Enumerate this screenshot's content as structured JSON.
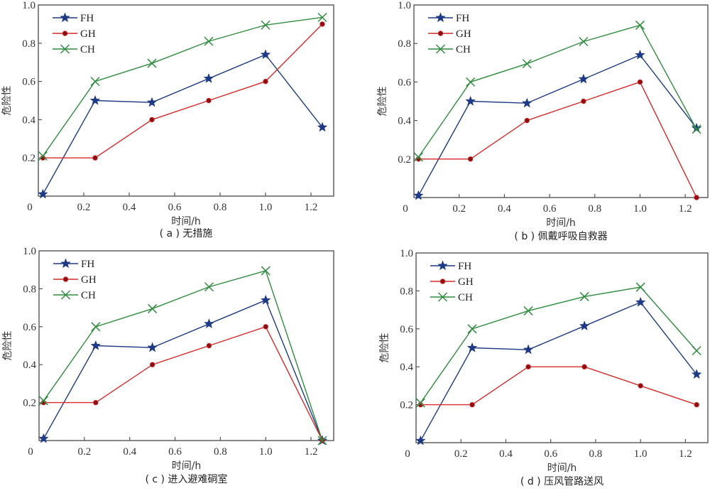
{
  "colors": {
    "FH": "#1f3a85",
    "GH": "#d42a2a",
    "GH_marker": "#8b0f12",
    "CH": "#2f8c3f",
    "axis": "#555555"
  },
  "chart_data": [
    {
      "type": "line",
      "panel": "a",
      "caption": "( a ) 无措施",
      "xlabel": "时间/h",
      "ylabel": "危险性",
      "xlim": [
        0,
        1.3
      ],
      "ylim": [
        0,
        1.0
      ],
      "xticks": [
        "0",
        "0.2",
        "0.4",
        "0.6",
        "0.8",
        "1.0",
        "1.2"
      ],
      "yticks": [
        "0.2",
        "0.4",
        "0.6",
        "0.8",
        "1.0"
      ],
      "grid": false,
      "legend_position": "top-left",
      "x": [
        0.02,
        0.25,
        0.5,
        0.75,
        1.0,
        1.25
      ],
      "series": [
        {
          "name": "FH",
          "marker": "star",
          "values": [
            0.01,
            0.5,
            0.49,
            0.615,
            0.74,
            0.36
          ]
        },
        {
          "name": "GH",
          "marker": "dot",
          "values": [
            0.2,
            0.2,
            0.4,
            0.5,
            0.6,
            0.9
          ]
        },
        {
          "name": "CH",
          "marker": "x",
          "values": [
            0.21,
            0.6,
            0.695,
            0.81,
            0.895,
            0.935
          ]
        }
      ]
    },
    {
      "type": "line",
      "panel": "b",
      "caption": "( b ) 佩戴呼吸自救器",
      "xlabel": "时间/h",
      "ylabel": "危险性",
      "xlim": [
        0,
        1.3
      ],
      "ylim": [
        0,
        1.0
      ],
      "xticks": [
        "0",
        "0.2",
        "0.4",
        "0.6",
        "0.8",
        "1.0",
        "1.2"
      ],
      "yticks": [
        "0.2",
        "0.4",
        "0.6",
        "0.8",
        "1.0"
      ],
      "grid": false,
      "legend_position": "top-left",
      "x": [
        0.02,
        0.25,
        0.5,
        0.75,
        1.0,
        1.25
      ],
      "series": [
        {
          "name": "FH",
          "marker": "star",
          "values": [
            0.01,
            0.5,
            0.49,
            0.615,
            0.74,
            0.36
          ]
        },
        {
          "name": "GH",
          "marker": "dot",
          "values": [
            0.2,
            0.2,
            0.4,
            0.5,
            0.6,
            0.0
          ]
        },
        {
          "name": "CH",
          "marker": "x",
          "values": [
            0.21,
            0.6,
            0.695,
            0.81,
            0.895,
            0.355
          ]
        }
      ]
    },
    {
      "type": "line",
      "panel": "c",
      "caption": "( c ) 进入避难硐室",
      "xlabel": "时间/h",
      "ylabel": "危险性",
      "xlim": [
        0,
        1.3
      ],
      "ylim": [
        0,
        1.0
      ],
      "xticks": [
        "0",
        "0.2",
        "0.4",
        "0.6",
        "0.8",
        "1.0",
        "1.2"
      ],
      "yticks": [
        "0.2",
        "0.4",
        "0.6",
        "0.8",
        "1.0"
      ],
      "grid": false,
      "legend_position": "top-left",
      "x": [
        0.02,
        0.25,
        0.5,
        0.75,
        1.0,
        1.25
      ],
      "series": [
        {
          "name": "FH",
          "marker": "star",
          "values": [
            0.01,
            0.5,
            0.49,
            0.615,
            0.74,
            0.0
          ]
        },
        {
          "name": "GH",
          "marker": "dot",
          "values": [
            0.2,
            0.2,
            0.4,
            0.5,
            0.6,
            0.0
          ]
        },
        {
          "name": "CH",
          "marker": "x",
          "values": [
            0.21,
            0.6,
            0.695,
            0.81,
            0.895,
            0.0
          ]
        }
      ]
    },
    {
      "type": "line",
      "panel": "d",
      "caption": "( d ) 压风管路送风",
      "xlabel": "时间/h",
      "ylabel": "危险性",
      "xlim": [
        0,
        1.3
      ],
      "ylim": [
        0,
        1.0
      ],
      "xticks": [
        "0",
        "0.2",
        "0.4",
        "0.6",
        "0.8",
        "1.0",
        "1.2"
      ],
      "yticks": [
        "0.2",
        "0.4",
        "0.6",
        "0.8",
        "1.0"
      ],
      "grid": false,
      "legend_position": "top-left",
      "x": [
        0.02,
        0.25,
        0.5,
        0.75,
        1.0,
        1.25
      ],
      "series": [
        {
          "name": "FH",
          "marker": "star",
          "values": [
            0.01,
            0.5,
            0.49,
            0.615,
            0.74,
            0.36
          ]
        },
        {
          "name": "GH",
          "marker": "dot",
          "values": [
            0.2,
            0.2,
            0.4,
            0.4,
            0.3,
            0.2
          ]
        },
        {
          "name": "CH",
          "marker": "x",
          "values": [
            0.21,
            0.6,
            0.695,
            0.77,
            0.82,
            0.485
          ]
        }
      ]
    }
  ]
}
